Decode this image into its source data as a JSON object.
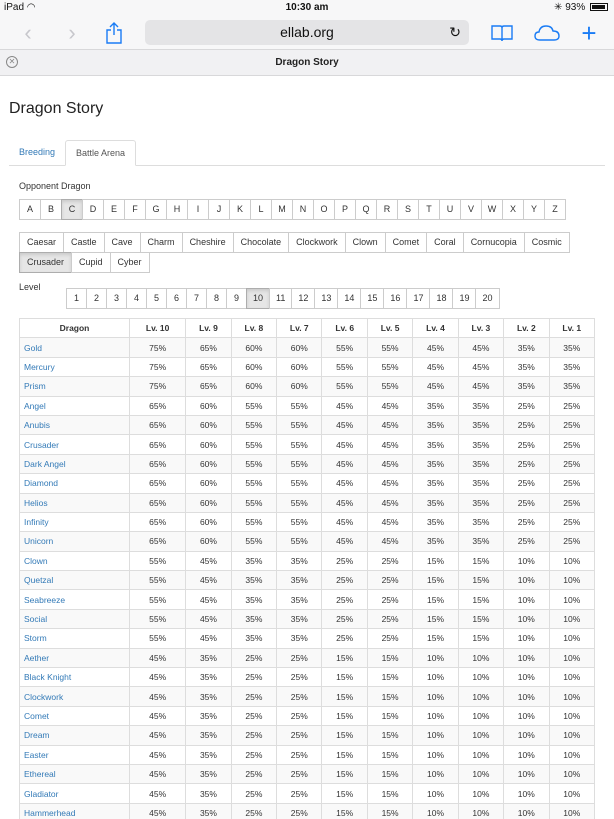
{
  "status_bar": {
    "device": "iPad",
    "time": "10:30 am",
    "battery": "93%"
  },
  "browser": {
    "url": "ellab.org",
    "tab_title": "Dragon Story"
  },
  "page": {
    "title": "Dragon Story",
    "tabs": [
      "Breeding",
      "Battle Arena"
    ],
    "active_tab": "Battle Arena",
    "opponent_label": "Opponent Dragon",
    "letters": [
      "A",
      "B",
      "C",
      "D",
      "E",
      "F",
      "G",
      "H",
      "I",
      "J",
      "K",
      "L",
      "M",
      "N",
      "O",
      "P",
      "Q",
      "R",
      "S",
      "T",
      "U",
      "V",
      "W",
      "X",
      "Y",
      "Z"
    ],
    "selected_letter": "C",
    "dragon_rows": [
      [
        "Caesar",
        "Castle",
        "Cave",
        "Charm",
        "Cheshire",
        "Chocolate",
        "Clockwork",
        "Clown",
        "Comet",
        "Coral",
        "Cornucopia",
        "Cosmic"
      ],
      [
        "Crusader",
        "Cupid",
        "Cyber"
      ]
    ],
    "selected_dragon": "Crusader",
    "level_label": "Level",
    "levels": [
      "1",
      "2",
      "3",
      "4",
      "5",
      "6",
      "7",
      "8",
      "9",
      "10",
      "11",
      "12",
      "13",
      "14",
      "15",
      "16",
      "17",
      "18",
      "19",
      "20"
    ],
    "selected_level": "10",
    "table": {
      "headers": [
        "Dragon",
        "Lv. 10",
        "Lv. 9",
        "Lv. 8",
        "Lv. 7",
        "Lv. 6",
        "Lv. 5",
        "Lv. 4",
        "Lv. 3",
        "Lv. 2",
        "Lv. 1"
      ],
      "rows": [
        [
          "Gold",
          "75%",
          "65%",
          "60%",
          "60%",
          "55%",
          "55%",
          "45%",
          "45%",
          "35%",
          "35%"
        ],
        [
          "Mercury",
          "75%",
          "65%",
          "60%",
          "60%",
          "55%",
          "55%",
          "45%",
          "45%",
          "35%",
          "35%"
        ],
        [
          "Prism",
          "75%",
          "65%",
          "60%",
          "60%",
          "55%",
          "55%",
          "45%",
          "45%",
          "35%",
          "35%"
        ],
        [
          "Angel",
          "65%",
          "60%",
          "55%",
          "55%",
          "45%",
          "45%",
          "35%",
          "35%",
          "25%",
          "25%"
        ],
        [
          "Anubis",
          "65%",
          "60%",
          "55%",
          "55%",
          "45%",
          "45%",
          "35%",
          "35%",
          "25%",
          "25%"
        ],
        [
          "Crusader",
          "65%",
          "60%",
          "55%",
          "55%",
          "45%",
          "45%",
          "35%",
          "35%",
          "25%",
          "25%"
        ],
        [
          "Dark Angel",
          "65%",
          "60%",
          "55%",
          "55%",
          "45%",
          "45%",
          "35%",
          "35%",
          "25%",
          "25%"
        ],
        [
          "Diamond",
          "65%",
          "60%",
          "55%",
          "55%",
          "45%",
          "45%",
          "35%",
          "35%",
          "25%",
          "25%"
        ],
        [
          "Helios",
          "65%",
          "60%",
          "55%",
          "55%",
          "45%",
          "45%",
          "35%",
          "35%",
          "25%",
          "25%"
        ],
        [
          "Infinity",
          "65%",
          "60%",
          "55%",
          "55%",
          "45%",
          "45%",
          "35%",
          "35%",
          "25%",
          "25%"
        ],
        [
          "Unicorn",
          "65%",
          "60%",
          "55%",
          "55%",
          "45%",
          "45%",
          "35%",
          "35%",
          "25%",
          "25%"
        ],
        [
          "Clown",
          "55%",
          "45%",
          "35%",
          "35%",
          "25%",
          "25%",
          "15%",
          "15%",
          "10%",
          "10%"
        ],
        [
          "Quetzal",
          "55%",
          "45%",
          "35%",
          "35%",
          "25%",
          "25%",
          "15%",
          "15%",
          "10%",
          "10%"
        ],
        [
          "Seabreeze",
          "55%",
          "45%",
          "35%",
          "35%",
          "25%",
          "25%",
          "15%",
          "15%",
          "10%",
          "10%"
        ],
        [
          "Social",
          "55%",
          "45%",
          "35%",
          "35%",
          "25%",
          "25%",
          "15%",
          "15%",
          "10%",
          "10%"
        ],
        [
          "Storm",
          "55%",
          "45%",
          "35%",
          "35%",
          "25%",
          "25%",
          "15%",
          "15%",
          "10%",
          "10%"
        ],
        [
          "Aether",
          "45%",
          "35%",
          "25%",
          "25%",
          "15%",
          "15%",
          "10%",
          "10%",
          "10%",
          "10%"
        ],
        [
          "Black Knight",
          "45%",
          "35%",
          "25%",
          "25%",
          "15%",
          "15%",
          "10%",
          "10%",
          "10%",
          "10%"
        ],
        [
          "Clockwork",
          "45%",
          "35%",
          "25%",
          "25%",
          "15%",
          "15%",
          "10%",
          "10%",
          "10%",
          "10%"
        ],
        [
          "Comet",
          "45%",
          "35%",
          "25%",
          "25%",
          "15%",
          "15%",
          "10%",
          "10%",
          "10%",
          "10%"
        ],
        [
          "Dream",
          "45%",
          "35%",
          "25%",
          "25%",
          "15%",
          "15%",
          "10%",
          "10%",
          "10%",
          "10%"
        ],
        [
          "Easter",
          "45%",
          "35%",
          "25%",
          "25%",
          "15%",
          "15%",
          "10%",
          "10%",
          "10%",
          "10%"
        ],
        [
          "Ethereal",
          "45%",
          "35%",
          "25%",
          "25%",
          "15%",
          "15%",
          "10%",
          "10%",
          "10%",
          "10%"
        ],
        [
          "Gladiator",
          "45%",
          "35%",
          "25%",
          "25%",
          "15%",
          "15%",
          "10%",
          "10%",
          "10%",
          "10%"
        ],
        [
          "Hammerhead",
          "45%",
          "35%",
          "25%",
          "25%",
          "15%",
          "15%",
          "10%",
          "10%",
          "10%",
          "10%"
        ]
      ]
    }
  },
  "colors": {
    "link": "#337ab7",
    "safari_accent": "#1a7cf5"
  },
  "icons": [
    "wifi-icon",
    "bluetooth-icon",
    "battery-icon",
    "back-icon",
    "forward-icon",
    "share-icon",
    "reload-icon",
    "bookmarks-icon",
    "icloud-tabs-icon",
    "new-tab-icon",
    "close-tab-icon"
  ]
}
